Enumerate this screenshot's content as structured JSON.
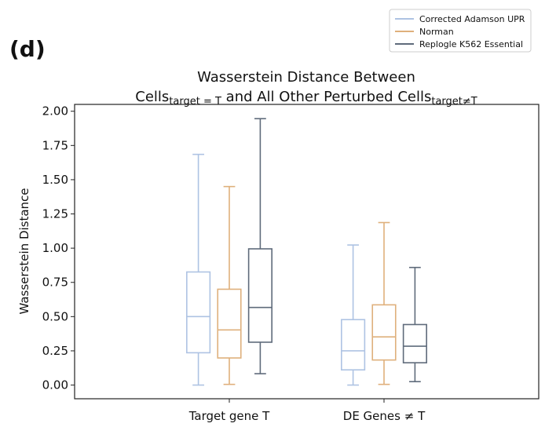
{
  "panel_label": "(d)",
  "chart_data": {
    "type": "box",
    "title_line1": "Wasserstein Distance Between",
    "title_line2": {
      "part1": "Cells",
      "sub1": "target = T",
      "part2": " and All Other Perturbed Cells",
      "sub2": "target≠T"
    },
    "xlabel": "",
    "ylabel": "Wasserstein Distance",
    "ylim": [
      -0.1,
      2.05
    ],
    "yticks": [
      0.0,
      0.25,
      0.5,
      0.75,
      1.0,
      1.25,
      1.5,
      1.75,
      2.0
    ],
    "ytick_labels": [
      "0.00",
      "0.25",
      "0.50",
      "0.75",
      "1.00",
      "1.25",
      "1.50",
      "1.75",
      "2.00"
    ],
    "categories": [
      "Target gene T",
      "DE Genes ≠ T"
    ],
    "grid": false,
    "legend_position": "top-right (outside, above plot)",
    "series": [
      {
        "name": "Corrected Adamson UPR",
        "color": "#aec3e3",
        "boxes": [
          {
            "whislo": 0.0,
            "q1": 0.236,
            "med": 0.5,
            "q3": 0.826,
            "whishi": 1.685
          },
          {
            "whislo": 0.0,
            "q1": 0.111,
            "med": 0.25,
            "q3": 0.478,
            "whishi": 1.023
          }
        ]
      },
      {
        "name": "Norman",
        "color": "#dfb07c",
        "boxes": [
          {
            "whislo": 0.005,
            "q1": 0.198,
            "med": 0.403,
            "q3": 0.7,
            "whishi": 1.45
          },
          {
            "whislo": 0.005,
            "q1": 0.183,
            "med": 0.352,
            "q3": 0.586,
            "whishi": 1.187
          }
        ]
      },
      {
        "name": "Replogle K562 Essential",
        "color": "#5f6b7b",
        "boxes": [
          {
            "whislo": 0.083,
            "q1": 0.313,
            "med": 0.567,
            "q3": 0.995,
            "whishi": 1.946
          },
          {
            "whislo": 0.025,
            "q1": 0.163,
            "med": 0.284,
            "q3": 0.442,
            "whishi": 0.859
          }
        ]
      }
    ]
  }
}
